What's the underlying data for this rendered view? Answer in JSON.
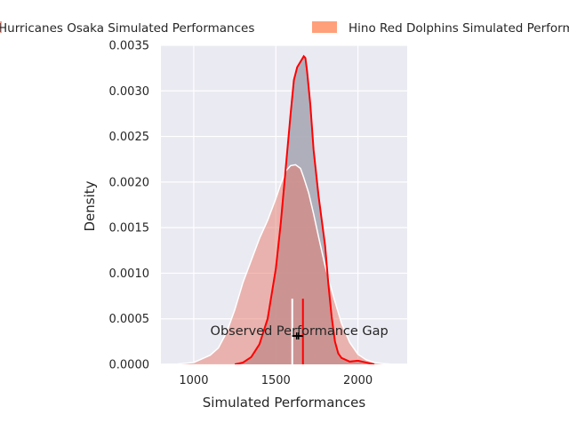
{
  "chart_data": {
    "type": "area",
    "title": "",
    "xlabel": "Simulated Performances",
    "ylabel": "Density",
    "xlim": [
      800,
      2300
    ],
    "ylim": [
      0,
      0.0035
    ],
    "grid": true,
    "background": "#eaeaf2",
    "legend_position": "top-center-outside",
    "x_ticks": [
      {
        "value": 1000,
        "label": "1000"
      },
      {
        "value": 1500,
        "label": "1500"
      },
      {
        "value": 2000,
        "label": "2000"
      }
    ],
    "y_ticks": [
      {
        "value": 0,
        "label": "0.0000"
      },
      {
        "value": 0.0005,
        "label": "0.0005"
      },
      {
        "value": 0.001,
        "label": "0.0010"
      },
      {
        "value": 0.0015,
        "label": "0.0015"
      },
      {
        "value": 0.002,
        "label": "0.0020"
      },
      {
        "value": 0.0025,
        "label": "0.0025"
      },
      {
        "value": 0.003,
        "label": "0.0030"
      },
      {
        "value": 0.0035,
        "label": "0.0035"
      }
    ],
    "series": [
      {
        "name": "Hurricanes Osaka Simulated Performances",
        "legend_text": "Hurricanes Osaka Simulated Performances",
        "fill_color": "#e8796a",
        "line_color": "#ffffff",
        "x": [
          800,
          900,
          1000,
          1100,
          1150,
          1200,
          1250,
          1300,
          1350,
          1400,
          1450,
          1500,
          1530,
          1560,
          1590,
          1620,
          1650,
          1670,
          1700,
          1730,
          1760,
          1800,
          1850,
          1900,
          1950,
          2000,
          2050,
          2100,
          2150,
          2200,
          2250,
          2300
        ],
        "y": [
          0.0,
          4e-06,
          2e-05,
          0.0001,
          0.00018,
          0.00035,
          0.0006,
          0.0009,
          0.00114,
          0.00138,
          0.00158,
          0.00182,
          0.00198,
          0.00212,
          0.00218,
          0.00219,
          0.00215,
          0.00205,
          0.00188,
          0.00165,
          0.0014,
          0.00108,
          0.00075,
          0.00045,
          0.00024,
          0.00011,
          5e-05,
          2e-05,
          8e-06,
          3e-06,
          1e-06,
          0.0
        ]
      },
      {
        "name": "Hino Red Dolphins Simulated Performances",
        "legend_text": "Hino Red Dolphins Simulated Performances",
        "fill_color": "#ffa07a",
        "line_color": "#ff0000",
        "x": [
          1250,
          1300,
          1350,
          1400,
          1450,
          1500,
          1530,
          1560,
          1590,
          1610,
          1630,
          1650,
          1670,
          1680,
          1690,
          1710,
          1730,
          1760,
          1800,
          1820,
          1840,
          1860,
          1880,
          1900,
          1950,
          2000,
          2050,
          2100
        ],
        "y": [
          0.0,
          2e-05,
          8e-05,
          0.00022,
          0.0005,
          0.00105,
          0.00155,
          0.00215,
          0.00275,
          0.00312,
          0.00326,
          0.00332,
          0.00338,
          0.00336,
          0.00322,
          0.00285,
          0.00235,
          0.00185,
          0.0013,
          0.00088,
          0.00052,
          0.00025,
          0.00012,
          7e-05,
          3e-05,
          4e-05,
          2e-05,
          0.0
        ]
      }
    ],
    "overlap_color": "#a8a8b6",
    "markers": [
      {
        "name": "Hurricanes Osaka observed",
        "x": 1600,
        "y_top": 0.00072,
        "color": "#ffffff"
      },
      {
        "name": "Hino Red Dolphins observed",
        "x": 1665,
        "y_top": 0.00072,
        "color": "#ff0000"
      }
    ],
    "gap_annotation": {
      "text": "Observed Performance Gap",
      "x_center": 1632,
      "y": 0.00037,
      "x_start": 1600,
      "x_end": 1665,
      "color": "#000000"
    }
  }
}
